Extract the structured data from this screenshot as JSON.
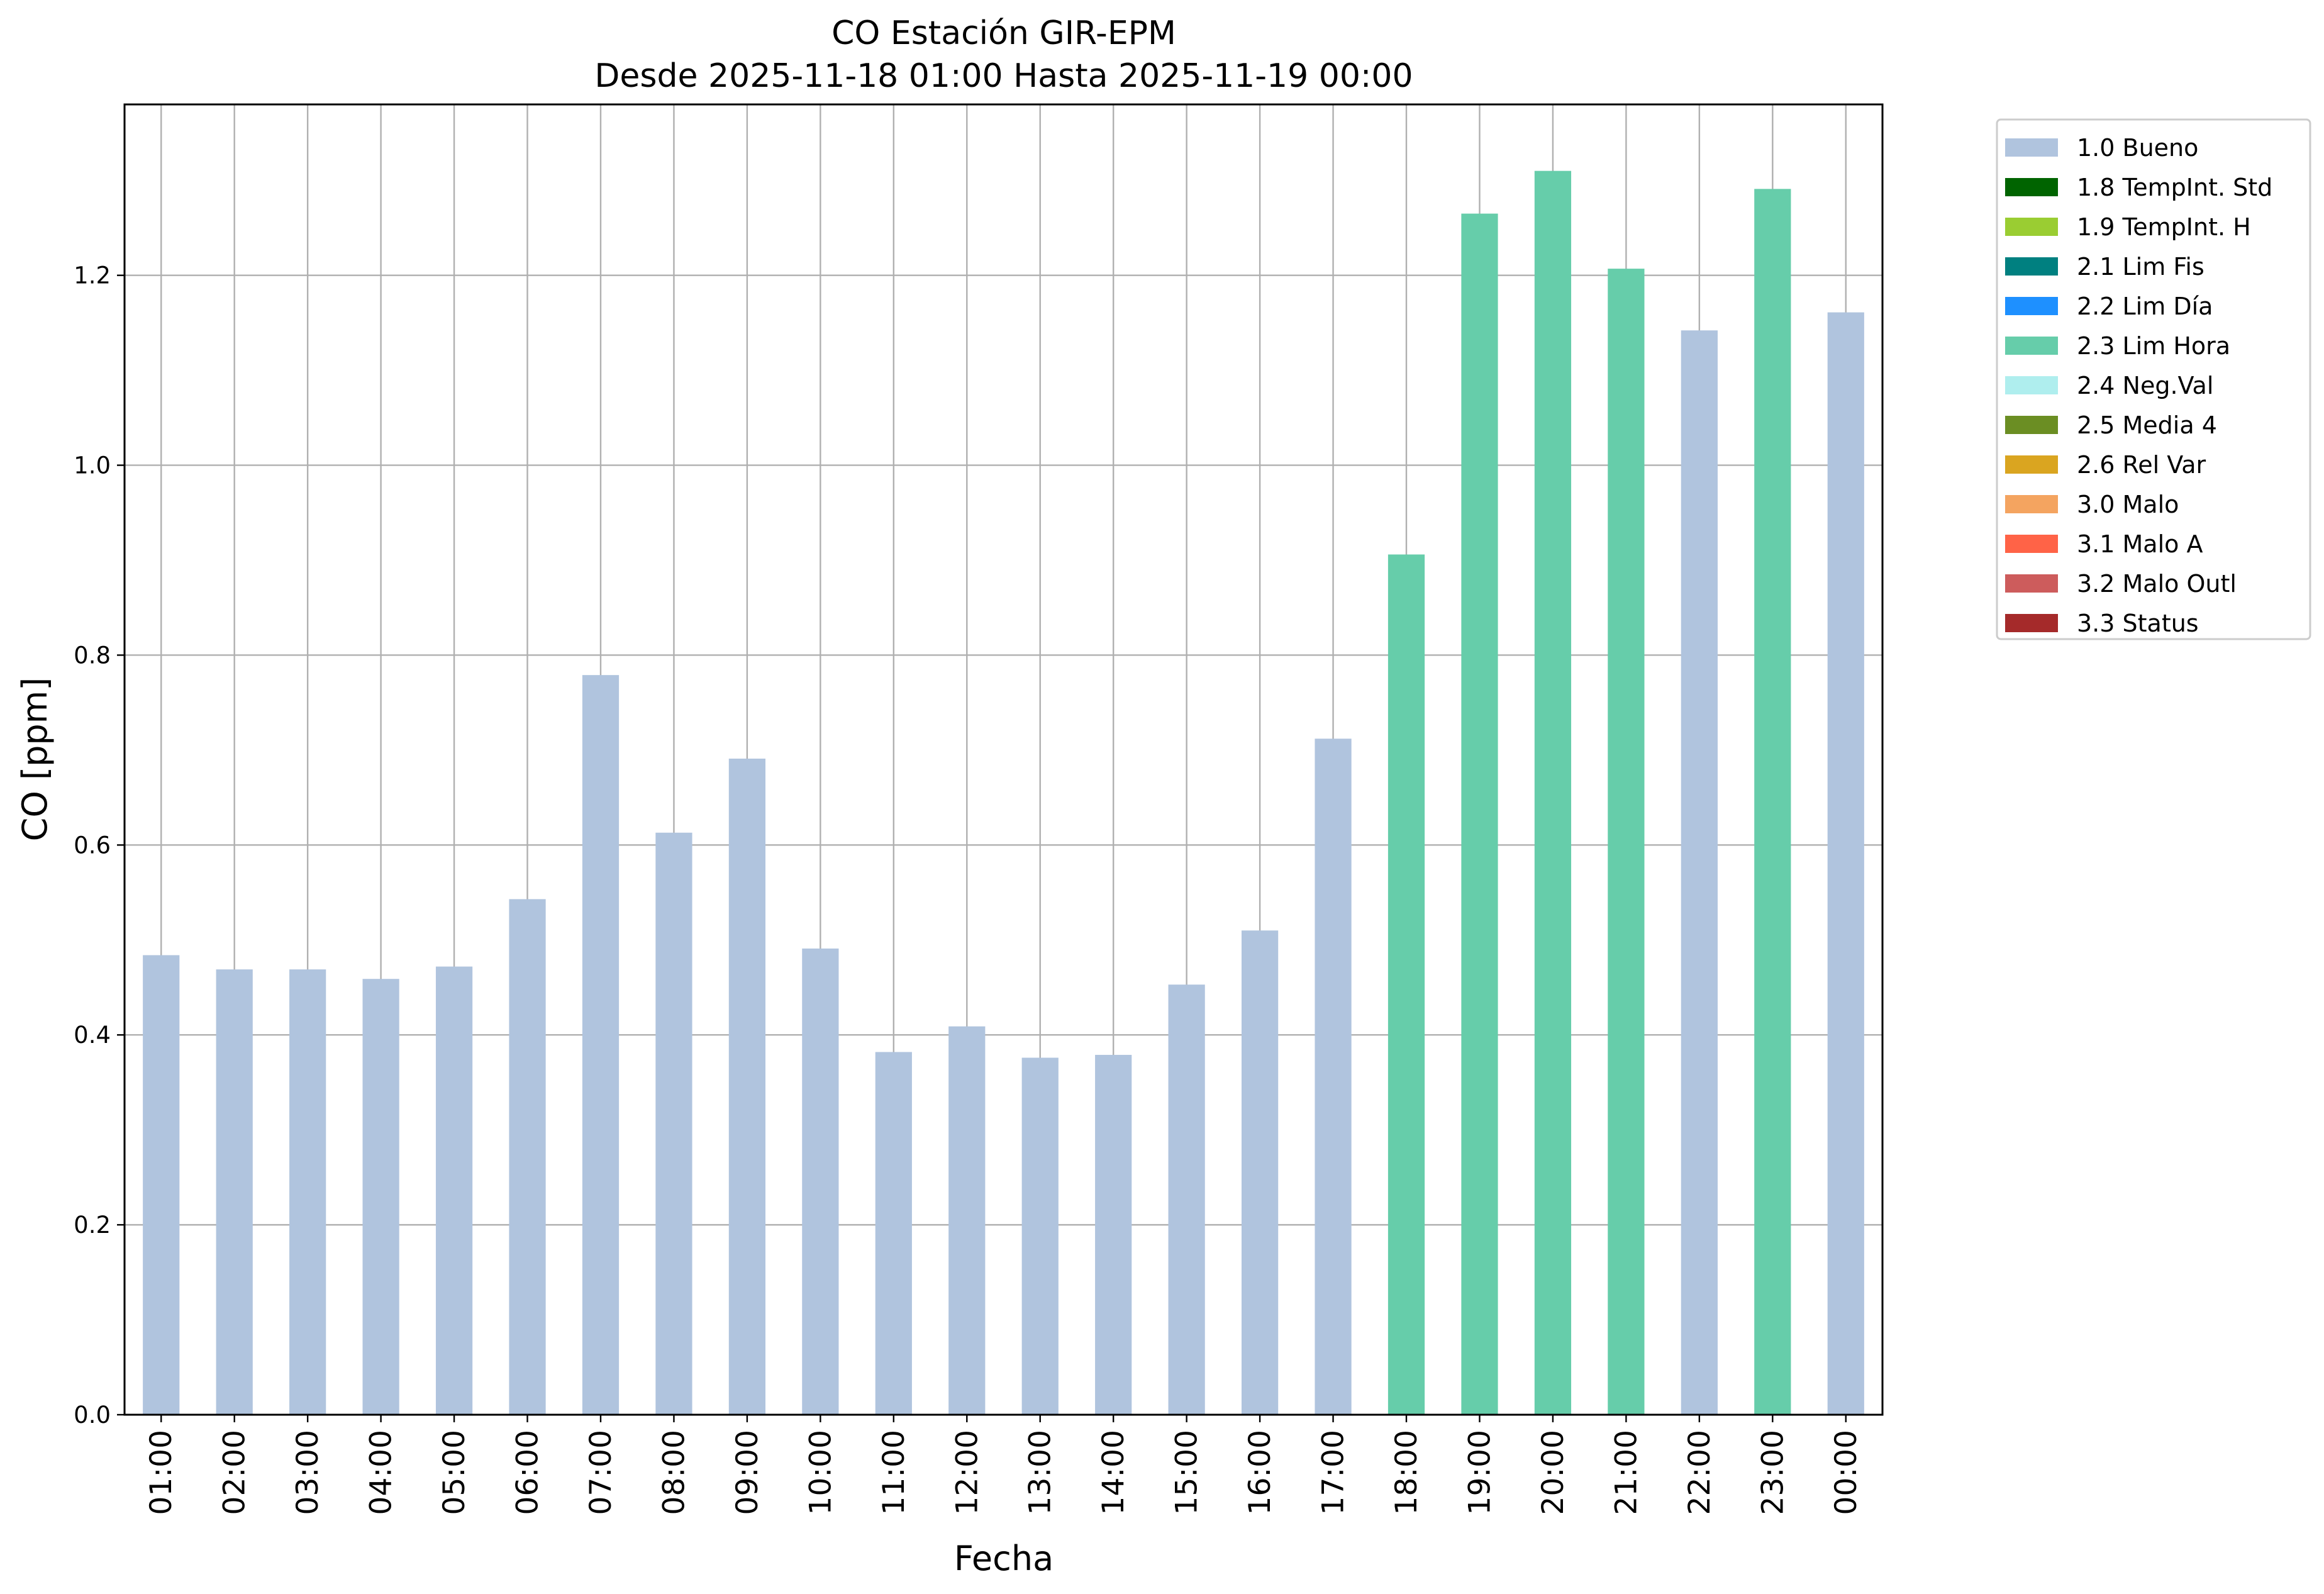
{
  "chart_data": {
    "type": "bar",
    "title": "CO Estación GIR-EPM",
    "subtitle": "Desde 2025-11-18 01:00 Hasta 2025-11-19 00:00",
    "xlabel": "Fecha",
    "ylabel": "CO [ppm]",
    "ylim": [
      0,
      1.38
    ],
    "yticks": [
      0.0,
      0.2,
      0.4,
      0.6,
      0.8,
      1.0,
      1.2
    ],
    "grid": true,
    "legend_position": "outside-right-top",
    "categories": [
      "01:00",
      "02:00",
      "03:00",
      "04:00",
      "05:00",
      "06:00",
      "07:00",
      "08:00",
      "09:00",
      "10:00",
      "11:00",
      "12:00",
      "13:00",
      "14:00",
      "15:00",
      "16:00",
      "17:00",
      "18:00",
      "19:00",
      "20:00",
      "21:00",
      "22:00",
      "23:00",
      "00:00"
    ],
    "values": [
      0.484,
      0.469,
      0.469,
      0.459,
      0.472,
      0.543,
      0.779,
      0.613,
      0.691,
      0.491,
      0.382,
      0.409,
      0.376,
      0.379,
      0.453,
      0.51,
      0.712,
      0.906,
      1.265,
      1.31,
      1.207,
      1.142,
      1.291,
      1.161
    ],
    "flags": [
      "1.0 Bueno",
      "1.0 Bueno",
      "1.0 Bueno",
      "1.0 Bueno",
      "1.0 Bueno",
      "1.0 Bueno",
      "1.0 Bueno",
      "1.0 Bueno",
      "1.0 Bueno",
      "1.0 Bueno",
      "1.0 Bueno",
      "1.0 Bueno",
      "1.0 Bueno",
      "1.0 Bueno",
      "1.0 Bueno",
      "1.0 Bueno",
      "1.0 Bueno",
      "2.3 Lim Hora",
      "2.3 Lim Hora",
      "2.3 Lim Hora",
      "2.3 Lim Hora",
      "1.0 Bueno",
      "2.3 Lim Hora",
      "1.0 Bueno"
    ],
    "legend": [
      {
        "label": "1.0 Bueno",
        "color": "#b0c4de"
      },
      {
        "label": "1.8 TempInt. Std",
        "color": "#006400"
      },
      {
        "label": "1.9 TempInt. H",
        "color": "#9acd32"
      },
      {
        "label": "2.1 Lim Fis",
        "color": "#008080"
      },
      {
        "label": "2.2 Lim Día",
        "color": "#1e90ff"
      },
      {
        "label": "2.3 Lim Hora",
        "color": "#66cdaa"
      },
      {
        "label": "2.4 Neg.Val",
        "color": "#afeeee"
      },
      {
        "label": "2.5 Media 4",
        "color": "#6b8e23"
      },
      {
        "label": "2.6 Rel Var",
        "color": "#daa520"
      },
      {
        "label": "3.0 Malo",
        "color": "#f4a460"
      },
      {
        "label": "3.1 Malo A",
        "color": "#ff6347"
      },
      {
        "label": "3.2 Malo Outl",
        "color": "#cd5c5c"
      },
      {
        "label": "3.3 Status",
        "color": "#a52a2a"
      }
    ]
  }
}
